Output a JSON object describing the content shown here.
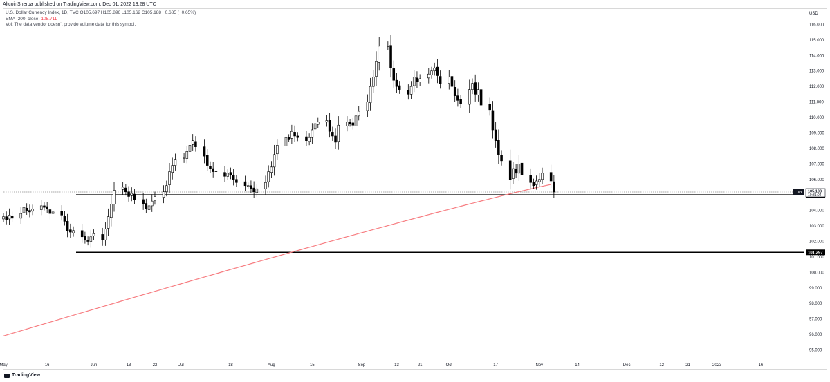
{
  "header": {
    "published": "AltcoinSherpa published on TradingView.com, Dec 01, 2022 13:28 UTC"
  },
  "legend": {
    "symbol_line": "U.S. Dollar Currency Index, 1D, TVC  O105.697  H105.896  L105.162  C105.188  −0.685 (−0.65%)",
    "ema_label": "EMA (200, close)",
    "ema_value": "105.711",
    "vol_line": "Vol: The data vendor doesn't provide volume data for this symbol."
  },
  "footer": {
    "brand": "TradingView"
  },
  "colors": {
    "up_candle": "#ffffff",
    "down_candle": "#000000",
    "candle_border": "#000000",
    "ema": "#f77c80",
    "level_line": "#000000",
    "dotted_line": "#8c8c8c"
  },
  "chart_data": {
    "type": "candlestick",
    "symbol": "DXY",
    "currency": "USD",
    "ylim": [
      94.4,
      117.0
    ],
    "y_ticks": [
      "95.000",
      "96.000",
      "97.000",
      "98.000",
      "99.000",
      "100.000",
      "101.000",
      "102.000",
      "103.000",
      "104.000",
      "105.000",
      "106.000",
      "107.000",
      "108.000",
      "109.000",
      "110.000",
      "111.000",
      "112.000",
      "113.000",
      "114.000",
      "115.000",
      "116.000"
    ],
    "x_ticks": [
      "May",
      "16",
      "Jun",
      "13",
      "22",
      "Jul",
      "18",
      "Aug",
      "15",
      "Sep",
      "13",
      "21",
      "Oct",
      "17",
      "Nov",
      "14",
      "Dec",
      "12",
      "21",
      "2023",
      "16"
    ],
    "x_tick_days": [
      0,
      15,
      31,
      43,
      52,
      61,
      78,
      92,
      106,
      123,
      135,
      143,
      153,
      169,
      184,
      197,
      214,
      226,
      235,
      245,
      260
    ],
    "first_day": 0,
    "last_day": 275,
    "closes": [
      [
        0,
        103.6
      ],
      [
        1,
        103.4
      ],
      [
        2,
        103.7
      ],
      [
        3,
        103.5
      ],
      [
        6,
        103.8
      ],
      [
        7,
        104.2
      ],
      [
        8,
        104.0
      ],
      [
        9,
        103.9
      ],
      [
        10,
        104.1
      ],
      [
        13,
        104.3
      ],
      [
        14,
        104.2
      ],
      [
        15,
        104.1
      ],
      [
        16,
        103.8
      ],
      [
        17,
        103.9
      ],
      [
        20,
        103.7
      ],
      [
        21,
        103.3
      ],
      [
        22,
        102.7
      ],
      [
        23,
        102.6
      ],
      [
        24,
        102.7
      ],
      [
        27,
        102.3
      ],
      [
        28,
        102.1
      ],
      [
        29,
        102.0
      ],
      [
        30,
        102.3
      ],
      [
        31,
        102.5
      ],
      [
        34,
        102.1
      ],
      [
        35,
        102.8
      ],
      [
        36,
        103.6
      ],
      [
        37,
        104.4
      ],
      [
        38,
        105.3
      ],
      [
        41,
        105.5
      ],
      [
        42,
        105.2
      ],
      [
        43,
        104.9
      ],
      [
        44,
        105.1
      ],
      [
        45,
        104.7
      ],
      [
        48,
        104.4
      ],
      [
        49,
        104.1
      ],
      [
        50,
        104.3
      ],
      [
        51,
        104.6
      ],
      [
        52,
        104.9
      ],
      [
        55,
        105.2
      ],
      [
        56,
        105.6
      ],
      [
        57,
        106.5
      ],
      [
        58,
        106.9
      ],
      [
        59,
        107.3
      ],
      [
        62,
        107.4
      ],
      [
        63,
        107.8
      ],
      [
        64,
        108.2
      ],
      [
        65,
        108.5
      ],
      [
        66,
        108.1
      ],
      [
        69,
        107.5
      ],
      [
        70,
        106.9
      ],
      [
        71,
        106.7
      ],
      [
        72,
        106.5
      ],
      [
        73,
        106.5
      ],
      [
        76,
        106.2
      ],
      [
        77,
        106.4
      ],
      [
        78,
        106.3
      ],
      [
        79,
        106.0
      ],
      [
        80,
        105.8
      ],
      [
        83,
        105.6
      ],
      [
        84,
        105.6
      ],
      [
        85,
        105.4
      ],
      [
        86,
        105.2
      ],
      [
        87,
        105.4
      ],
      [
        90,
        105.8
      ],
      [
        91,
        106.5
      ],
      [
        92,
        106.8
      ],
      [
        93,
        107.6
      ],
      [
        94,
        108.2
      ],
      [
        97,
        108.7
      ],
      [
        98,
        108.6
      ],
      [
        99,
        109.1
      ],
      [
        100,
        108.8
      ],
      [
        101,
        108.7
      ],
      [
        104,
        108.5
      ],
      [
        105,
        108.7
      ],
      [
        106,
        109.2
      ],
      [
        107,
        109.6
      ],
      [
        108,
        109.7
      ],
      [
        111,
        109.8
      ],
      [
        112,
        109.1
      ],
      [
        113,
        108.8
      ],
      [
        114,
        108.4
      ],
      [
        115,
        109.5
      ],
      [
        118,
        109.7
      ],
      [
        119,
        109.6
      ],
      [
        120,
        109.5
      ],
      [
        121,
        110.1
      ],
      [
        122,
        110.4
      ],
      [
        125,
        111.0
      ],
      [
        126,
        112.0
      ],
      [
        127,
        112.6
      ],
      [
        128,
        113.6
      ],
      [
        129,
        114.6
      ],
      [
        132,
        114.6
      ],
      [
        133,
        113.2
      ],
      [
        134,
        112.4
      ],
      [
        135,
        112.0
      ],
      [
        136,
        111.8
      ],
      [
        139,
        111.5
      ],
      [
        140,
        112.0
      ],
      [
        141,
        112.6
      ],
      [
        142,
        112.3
      ],
      [
        143,
        112.5
      ],
      [
        146,
        112.8
      ],
      [
        147,
        113.0
      ],
      [
        148,
        113.2
      ],
      [
        149,
        112.7
      ],
      [
        150,
        112.2
      ],
      [
        153,
        112.6
      ],
      [
        154,
        112.0
      ],
      [
        155,
        111.4
      ],
      [
        156,
        111.1
      ],
      [
        157,
        110.9
      ],
      [
        160,
        111.8
      ],
      [
        161,
        112.2
      ],
      [
        162,
        111.5
      ],
      [
        163,
        111.8
      ],
      [
        164,
        110.8
      ],
      [
        167,
        110.5
      ],
      [
        168,
        109.2
      ],
      [
        169,
        108.5
      ],
      [
        170,
        107.6
      ],
      [
        171,
        107.2
      ],
      [
        174,
        106.0
      ],
      [
        175,
        106.7
      ],
      [
        176,
        106.4
      ],
      [
        177,
        107.0
      ],
      [
        178,
        106.3
      ],
      [
        181,
        105.8
      ],
      [
        182,
        105.6
      ],
      [
        183,
        105.9
      ],
      [
        184,
        106.0
      ],
      [
        185,
        106.4
      ],
      [
        188,
        105.9
      ],
      [
        189,
        105.188
      ]
    ],
    "levels": [
      {
        "value": 105.005,
        "label": "105.005"
      },
      {
        "value": 101.297,
        "label": "101.297"
      }
    ],
    "last_price_label": "105.188",
    "countdown_label": "10:31:04",
    "ema_label": "EMA (200, close)"
  }
}
